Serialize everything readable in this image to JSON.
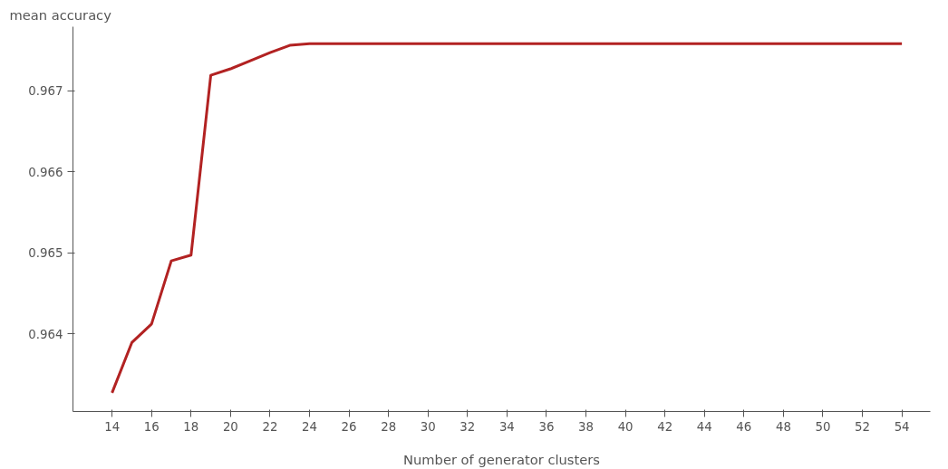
{
  "chart_data": {
    "type": "line",
    "ylabel": "mean accuracy",
    "xlabel": "Number of generator clusters",
    "x": [
      14,
      15,
      16,
      17,
      18,
      19,
      20,
      21,
      22,
      23,
      24,
      54
    ],
    "series": [
      {
        "color": "#b22222",
        "values": [
          0.96327,
          0.96389,
          0.96412,
          0.9649,
          0.96497,
          0.96719,
          0.96727,
          0.96737,
          0.96747,
          0.96756,
          0.96758,
          0.96758
        ]
      }
    ],
    "xlim": [
      12.02,
      55.44
    ],
    "ylim": [
      0.96304,
      0.96779
    ],
    "xticks": [
      14,
      16,
      18,
      20,
      22,
      24,
      26,
      28,
      30,
      32,
      34,
      36,
      38,
      40,
      42,
      44,
      46,
      48,
      50,
      52,
      54
    ],
    "yticks": [
      0.964,
      0.965,
      0.966,
      0.967
    ],
    "grid": false,
    "marker": "none",
    "line_style": "solid"
  }
}
